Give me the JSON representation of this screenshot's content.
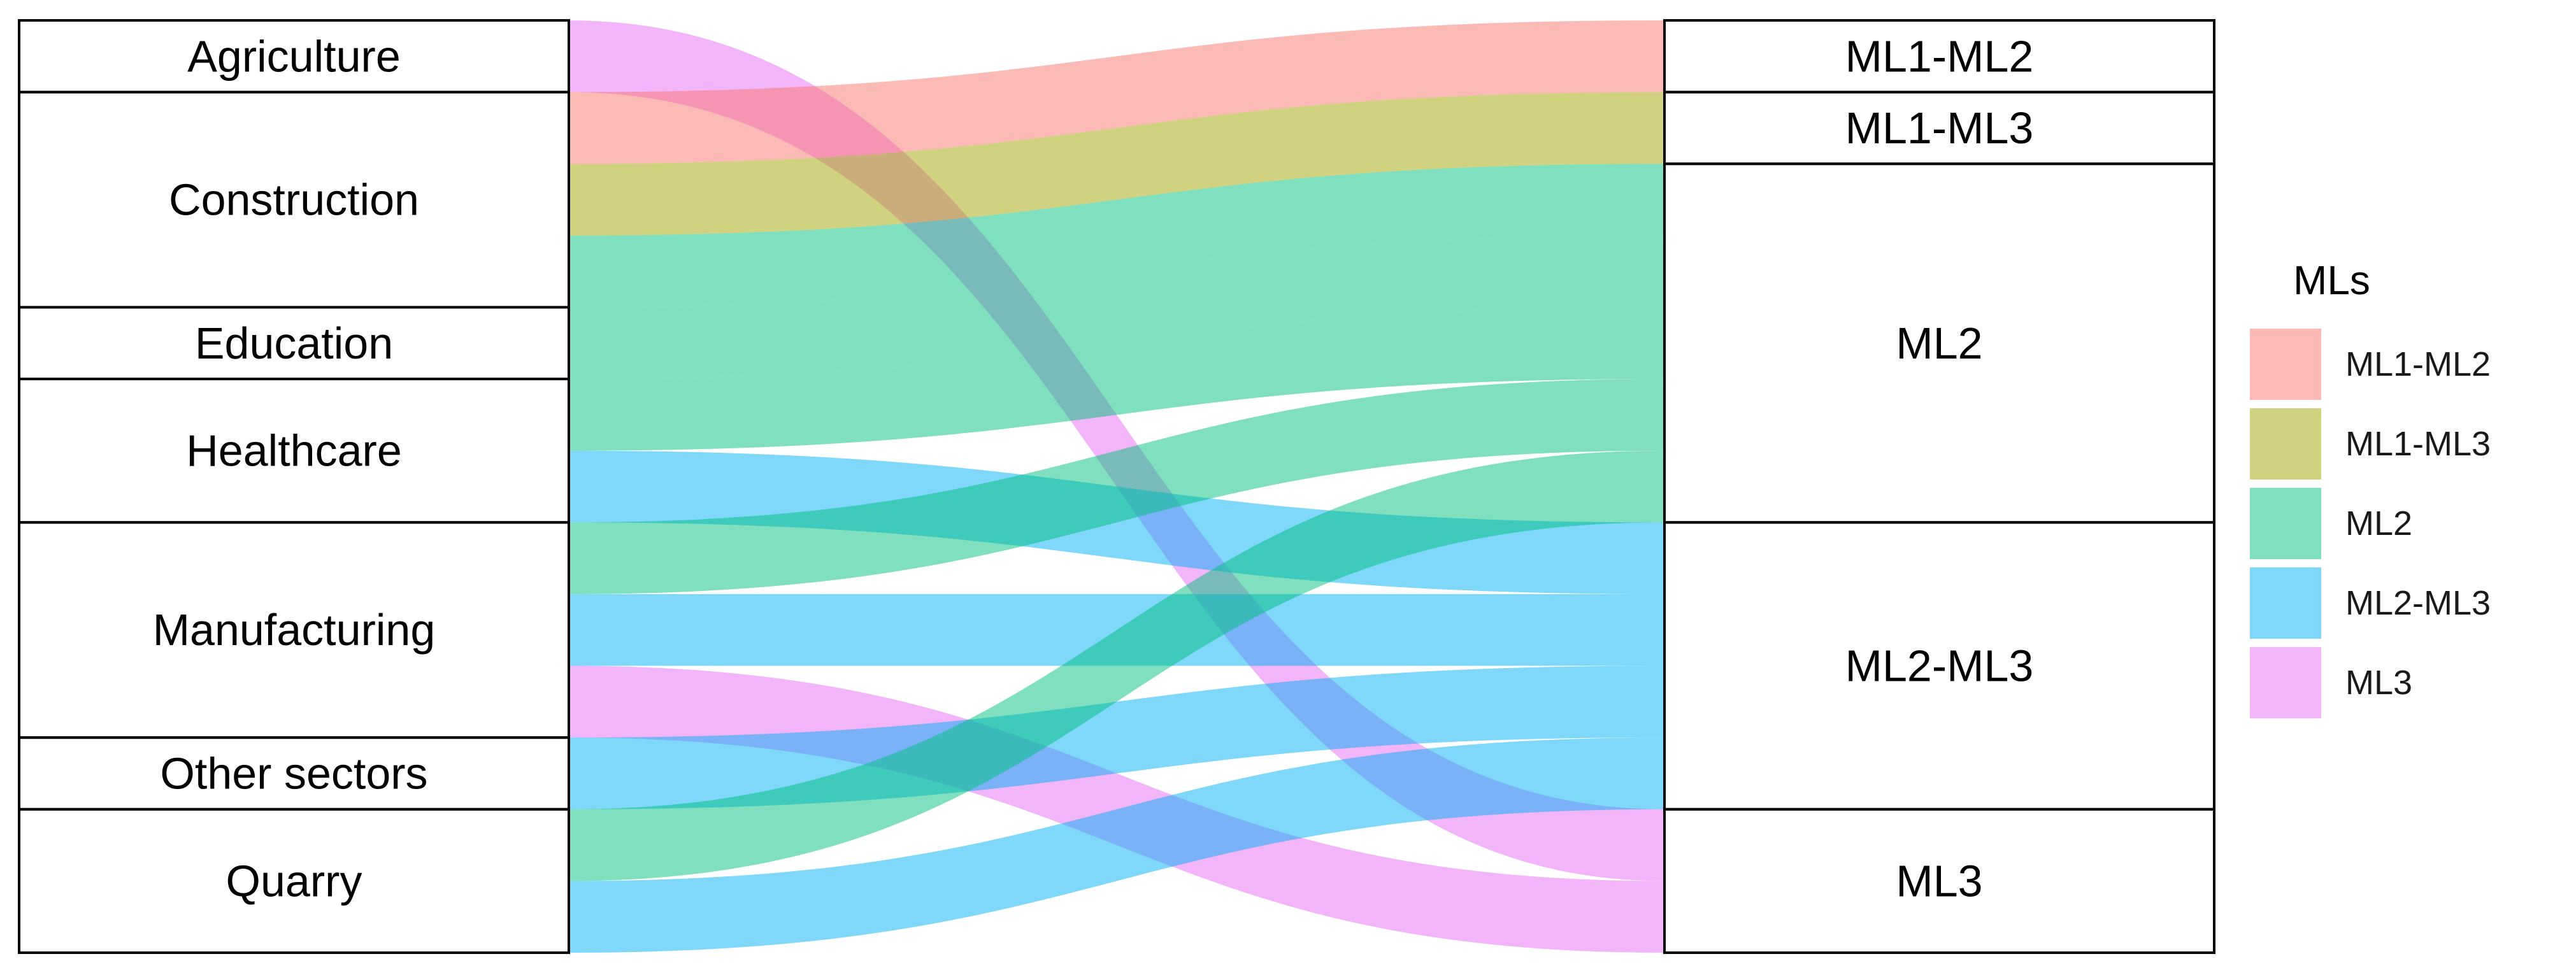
{
  "chart_data": {
    "type": "alluvial",
    "left_axis": [
      "Agriculture",
      "Construction",
      "Education",
      "Healthcare",
      "Manufacturing",
      "Other sectors",
      "Quarry"
    ],
    "right_axis": [
      "ML1-ML2",
      "ML1-ML3",
      "ML2",
      "ML2-ML3",
      "ML3"
    ],
    "flows": [
      {
        "from": "Agriculture",
        "to": "ML3",
        "value": 1
      },
      {
        "from": "Construction",
        "to": "ML1-ML2",
        "value": 1
      },
      {
        "from": "Construction",
        "to": "ML1-ML3",
        "value": 1
      },
      {
        "from": "Construction",
        "to": "ML2",
        "value": 1
      },
      {
        "from": "Education",
        "to": "ML2",
        "value": 1
      },
      {
        "from": "Healthcare",
        "to": "ML2",
        "value": 1
      },
      {
        "from": "Healthcare",
        "to": "ML2-ML3",
        "value": 1
      },
      {
        "from": "Manufacturing",
        "to": "ML2",
        "value": 1
      },
      {
        "from": "Manufacturing",
        "to": "ML2-ML3",
        "value": 1
      },
      {
        "from": "Manufacturing",
        "to": "ML3",
        "value": 1
      },
      {
        "from": "Other sectors",
        "to": "ML2-ML3",
        "value": 1
      },
      {
        "from": "Quarry",
        "to": "ML2",
        "value": 1
      },
      {
        "from": "Quarry",
        "to": "ML2-ML3",
        "value": 1
      }
    ],
    "legend": {
      "title": "MLs",
      "position": "right",
      "items": [
        {
          "label": "ML1-ML2",
          "color": "#F8766D"
        },
        {
          "label": "ML1-ML3",
          "color": "#A3A500"
        },
        {
          "label": "ML2",
          "color": "#00BF7D"
        },
        {
          "label": "ML2-ML3",
          "color": "#00B0F6"
        },
        {
          "label": "ML3",
          "color": "#E76BF3"
        }
      ]
    },
    "flow_opacity": 0.5
  }
}
